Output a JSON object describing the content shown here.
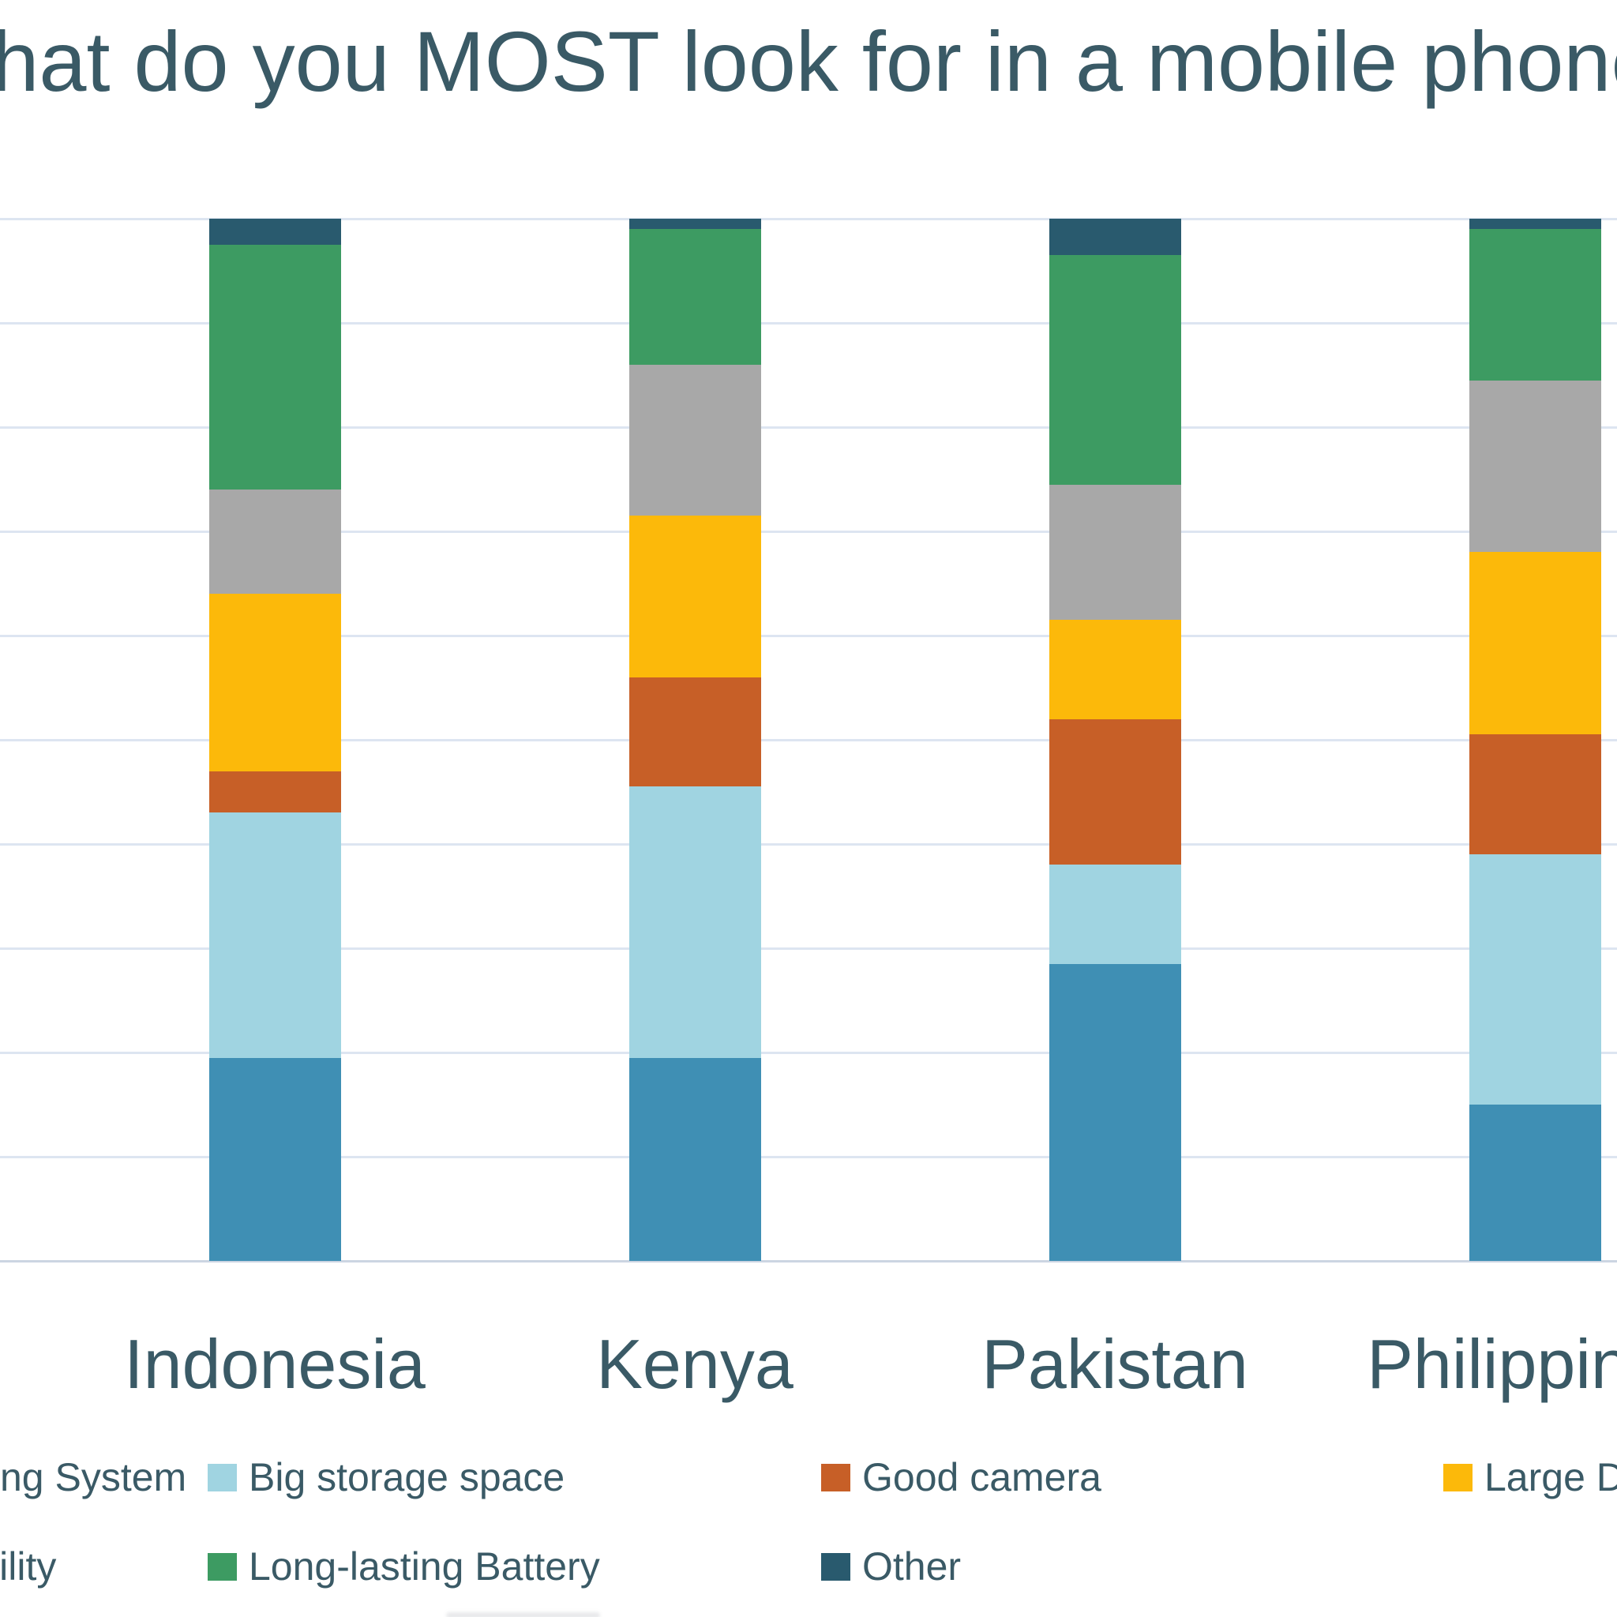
{
  "chart_data": {
    "type": "bar",
    "variant": "stacked-percent-column",
    "title": "What do you MOST look for in a mobile phone?",
    "title_clipped_visible": "at do you MOST look for in a mobile pho",
    "categories": [
      "Indonesia",
      "Kenya",
      "Pakistan",
      "Philippines"
    ],
    "series": [
      {
        "name": "Operating System",
        "color": "#3f8fb4",
        "values": [
          19.5,
          19.5,
          28.5,
          15.0
        ]
      },
      {
        "name": "Big storage space",
        "color": "#a0d4e1",
        "values": [
          23.5,
          26.0,
          9.5,
          24.0
        ]
      },
      {
        "name": "Good camera",
        "color": "#c75f27",
        "values": [
          4.0,
          10.5,
          14.0,
          11.5
        ]
      },
      {
        "name": "Large Display",
        "color": "#fcb90a",
        "values": [
          17.0,
          15.5,
          9.5,
          17.5
        ]
      },
      {
        "name": "Durability",
        "color": "#a8a8a8",
        "values": [
          10.0,
          14.5,
          13.0,
          16.5
        ]
      },
      {
        "name": "Long-lasting Battery",
        "color": "#3d9b62",
        "values": [
          23.5,
          13.0,
          22.0,
          14.5
        ]
      },
      {
        "name": "Other",
        "color": "#295a6e",
        "values": [
          2.5,
          1.0,
          3.5,
          1.0
        ]
      }
    ],
    "stack_order": "first series at bottom, last series on top",
    "xlabel": "",
    "ylabel": "",
    "ylim": [
      0,
      100
    ],
    "y_unit": "percent",
    "gridlines": {
      "visible": true,
      "step": 10,
      "count": 11,
      "tick_labels_visible": false
    },
    "legend_position": "bottom"
  },
  "legend": {
    "rows": [
      [
        {
          "label": "Operating System",
          "series": 0,
          "clipped": "left, shows 'ng System'"
        },
        {
          "label": "Big storage space",
          "series": 1
        },
        {
          "label": "Good camera",
          "series": 2
        },
        {
          "label": "Large Display",
          "series": 3,
          "clipped": "right, shows 'Large D'"
        }
      ],
      [
        {
          "label": "Durability",
          "series": 4,
          "clipped": "left, shows 'ility'"
        },
        {
          "label": "Long-lasting Battery",
          "series": 5
        },
        {
          "label": "Other",
          "series": 6
        }
      ]
    ]
  },
  "colors": {
    "text": "#3a5a66",
    "gridline": "#dde5f1",
    "baseline": "#ccd5e2",
    "background": "#ffffff"
  }
}
